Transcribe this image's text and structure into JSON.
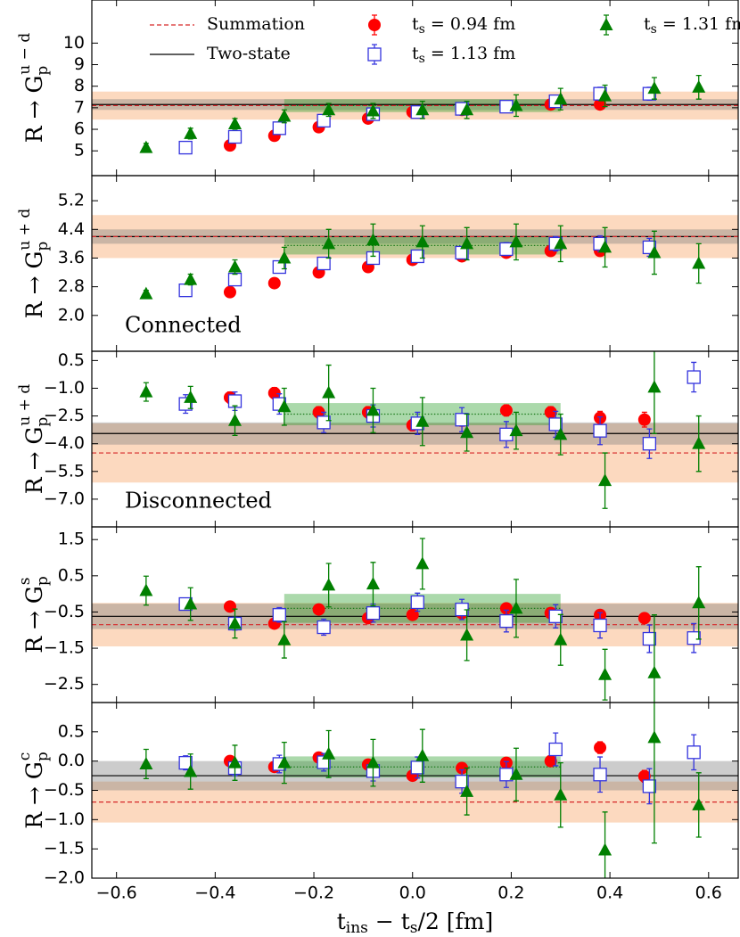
{
  "chart_data": [
    {
      "type": "errorbar",
      "ylabel": [
        "R → G",
        "p",
        "u − d"
      ],
      "xlim": [
        -0.65,
        0.66
      ],
      "xticks": [
        -0.6,
        -0.4,
        -0.2,
        0,
        0.2,
        0.4,
        0.6
      ],
      "ylim": [
        3.85,
        12.0
      ],
      "yticks": [
        5,
        6,
        7,
        8,
        9,
        10
      ],
      "summation": {
        "name": "Summation",
        "value": 7.1,
        "error": 0.65,
        "color": "#d62728"
      },
      "two_state": {
        "name": "Two-state",
        "value": 7.15,
        "error": 0.25,
        "color": "#000000"
      },
      "plateau": {
        "value": 7.1,
        "error": 0.3,
        "xrange": [
          -0.26,
          0.3
        ]
      },
      "series": [
        {
          "name": "ts = 0.94 fm",
          "color": "#ff0000",
          "marker": "circle",
          "x": [
            -0.37,
            -0.28,
            -0.19,
            -0.09,
            0.0,
            0.1,
            0.19,
            0.28,
            0.38,
            0.47
          ],
          "values": [
            5.25,
            5.7,
            6.1,
            6.5,
            6.8,
            6.9,
            7.05,
            7.15,
            7.15,
            null
          ],
          "errors": [
            0.1,
            0.1,
            0.1,
            0.1,
            0.1,
            0.1,
            0.1,
            0.1,
            0.12,
            null
          ]
        },
        {
          "name": "ts = 1.13 fm",
          "color": "#3333dd",
          "marker": "square",
          "x": [
            -0.46,
            -0.36,
            -0.27,
            -0.18,
            -0.08,
            0.01,
            0.1,
            0.19,
            0.29,
            0.38,
            0.48,
            0.57
          ],
          "values": [
            5.15,
            5.65,
            6.05,
            6.4,
            6.7,
            6.8,
            6.95,
            7.05,
            7.3,
            7.65,
            7.65,
            null
          ],
          "errors": [
            0.12,
            0.15,
            0.15,
            0.2,
            0.2,
            0.2,
            0.22,
            0.25,
            0.28,
            0.3,
            0.3,
            null
          ]
        },
        {
          "name": "ts = 1.31 fm",
          "color": "#007f00",
          "marker": "triangle",
          "x": [
            -0.54,
            -0.45,
            -0.36,
            -0.26,
            -0.17,
            -0.08,
            0.02,
            0.11,
            0.21,
            0.3,
            0.39,
            0.49,
            0.58
          ],
          "values": [
            5.15,
            5.8,
            6.25,
            6.6,
            6.9,
            6.85,
            6.9,
            6.9,
            7.1,
            7.4,
            7.55,
            7.9,
            7.95
          ],
          "errors": [
            0.2,
            0.25,
            0.25,
            0.3,
            0.3,
            0.35,
            0.4,
            0.4,
            0.5,
            0.5,
            0.5,
            0.5,
            0.55
          ]
        }
      ]
    },
    {
      "type": "errorbar",
      "ylabel": [
        "R → G",
        "p",
        "u + d"
      ],
      "xlim": [
        -0.65,
        0.66
      ],
      "xticks": [
        -0.6,
        -0.4,
        -0.2,
        0,
        0.2,
        0.4,
        0.6
      ],
      "ylim": [
        1.0,
        5.9
      ],
      "yticks": [
        {
          "value": 2,
          "label": "2.0"
        },
        2.8,
        3.6,
        4.4,
        5.2
      ],
      "annotation": "Connected",
      "summation": {
        "value": 4.2,
        "error": 0.6,
        "color": "#d62728"
      },
      "two_state": {
        "value": 4.2,
        "error": 0.2,
        "color": "#000000"
      },
      "plateau": {
        "value": 3.95,
        "error": 0.25,
        "xrange": [
          -0.26,
          0.3
        ]
      },
      "series": [
        {
          "color": "#ff0000",
          "marker": "circle",
          "x": [
            -0.37,
            -0.28,
            -0.19,
            -0.09,
            0.0,
            0.1,
            0.19,
            0.28,
            0.38,
            0.47
          ],
          "values": [
            2.65,
            2.9,
            3.2,
            3.35,
            3.55,
            3.65,
            3.75,
            3.8,
            3.8,
            null
          ],
          "errors": [
            0.05,
            0.05,
            0.06,
            0.06,
            0.07,
            0.07,
            0.08,
            0.08,
            0.1,
            null
          ]
        },
        {
          "color": "#3333dd",
          "marker": "square",
          "x": [
            -0.46,
            -0.36,
            -0.27,
            -0.18,
            -0.08,
            0.01,
            0.1,
            0.19,
            0.29,
            0.38,
            0.48,
            0.57
          ],
          "values": [
            2.7,
            3.0,
            3.35,
            3.45,
            3.6,
            3.65,
            3.75,
            3.85,
            4.0,
            4.0,
            3.9,
            null
          ],
          "errors": [
            0.08,
            0.1,
            0.12,
            0.12,
            0.14,
            0.15,
            0.16,
            0.18,
            0.2,
            0.22,
            0.25,
            null
          ]
        },
        {
          "color": "#007f00",
          "marker": "triangle",
          "x": [
            -0.54,
            -0.45,
            -0.36,
            -0.26,
            -0.17,
            -0.08,
            0.02,
            0.11,
            0.21,
            0.3,
            0.39,
            0.49,
            0.58
          ],
          "values": [
            2.6,
            3.0,
            3.35,
            3.6,
            4.0,
            4.1,
            4.05,
            4.0,
            4.05,
            4.0,
            3.9,
            3.75,
            3.45
          ],
          "errors": [
            0.1,
            0.15,
            0.2,
            0.3,
            0.4,
            0.45,
            0.45,
            0.45,
            0.5,
            0.5,
            0.55,
            0.6,
            0.55
          ]
        }
      ]
    },
    {
      "type": "errorbar",
      "ylabel": [
        "R → G",
        "p",
        "u + d"
      ],
      "xlim": [
        -0.65,
        0.66
      ],
      "xticks": [
        -0.6,
        -0.4,
        -0.2,
        0,
        0.2,
        0.4,
        0.6
      ],
      "ylim": [
        -8.5,
        1.0
      ],
      "yticks": [
        0.5,
        {
          "value": -1,
          "label": "−1.0"
        },
        {
          "value": -2.5,
          "label": "−2.5"
        },
        {
          "value": -4,
          "label": "−4.0"
        },
        {
          "value": -5.5,
          "label": "−5.5"
        },
        {
          "value": -7,
          "label": "−7.0"
        }
      ],
      "annotation": "Disconnected",
      "summation": {
        "value": -4.5,
        "error": 1.6,
        "color": "#d62728"
      },
      "two_state": {
        "value": -3.45,
        "error": 0.6,
        "color": "#000000"
      },
      "plateau": {
        "value": -2.4,
        "error": 0.6,
        "xrange": [
          -0.26,
          0.3
        ]
      },
      "series": [
        {
          "color": "#ff0000",
          "marker": "circle",
          "x": [
            -0.37,
            -0.28,
            -0.19,
            -0.09,
            0.0,
            0.1,
            0.19,
            0.28,
            0.38,
            0.47
          ],
          "values": [
            -1.5,
            -1.26,
            -2.3,
            -2.3,
            -3.0,
            -2.75,
            -2.2,
            -2.3,
            -2.6,
            -2.7
          ],
          "errors": [
            0.3,
            0.3,
            0.3,
            0.3,
            0.3,
            0.3,
            0.3,
            0.3,
            0.35,
            0.4
          ]
        },
        {
          "color": "#3333dd",
          "marker": "square",
          "x": [
            -0.46,
            -0.36,
            -0.27,
            -0.18,
            -0.08,
            0.01,
            0.1,
            0.19,
            0.29,
            0.38,
            0.48,
            0.57
          ],
          "values": [
            -1.85,
            -1.7,
            -1.85,
            -2.85,
            -2.5,
            -2.9,
            -2.7,
            -3.5,
            -2.95,
            -3.3,
            -4.0,
            -0.4
          ],
          "errors": [
            0.5,
            0.5,
            0.55,
            0.55,
            0.6,
            0.6,
            0.65,
            0.7,
            0.7,
            0.75,
            0.8,
            0.8
          ]
        },
        {
          "color": "#007f00",
          "marker": "triangle",
          "x": [
            -0.54,
            -0.45,
            -0.36,
            -0.26,
            -0.17,
            -0.08,
            0.02,
            0.11,
            0.21,
            0.3,
            0.39,
            0.49,
            0.58
          ],
          "values": [
            -1.2,
            -1.5,
            -2.75,
            -2.0,
            -1.25,
            -2.2,
            -2.8,
            -3.4,
            -3.3,
            -3.5,
            -6.0,
            -0.95,
            -4.0
          ],
          "errors": [
            0.5,
            0.6,
            0.8,
            1.0,
            1.5,
            1.2,
            1.3,
            1.0,
            1.0,
            1.1,
            1.5,
            2.5,
            1.5
          ]
        }
      ]
    },
    {
      "type": "errorbar",
      "ylabel": [
        "R → G",
        "p",
        "s"
      ],
      "xlim": [
        -0.65,
        0.66
      ],
      "xticks": [
        -0.6,
        -0.4,
        -0.2,
        0,
        0.2,
        0.4,
        0.6
      ],
      "ylim": [
        -3.0,
        1.85
      ],
      "yticks": [
        1.5,
        0.5,
        {
          "value": -0.5,
          "label": "−0.5"
        },
        {
          "value": -1.5,
          "label": "−1.5"
        },
        {
          "value": -2.5,
          "label": "−2.5"
        }
      ],
      "summation": {
        "value": -0.85,
        "error": 0.6,
        "color": "#d62728"
      },
      "two_state": {
        "value": -0.62,
        "error": 0.35,
        "color": "#000000"
      },
      "plateau": {
        "value": -0.4,
        "error": 0.4,
        "xrange": [
          -0.26,
          0.3
        ]
      },
      "series": [
        {
          "color": "#ff0000",
          "marker": "circle",
          "x": [
            -0.37,
            -0.28,
            -0.19,
            -0.09,
            0.0,
            0.1,
            0.19,
            0.28,
            0.38,
            0.47
          ],
          "values": [
            -0.35,
            -0.82,
            -0.43,
            -0.67,
            -0.58,
            -0.53,
            -0.4,
            -0.53,
            -0.58,
            -0.67
          ],
          "errors": [
            0.1,
            0.1,
            0.1,
            0.1,
            0.1,
            0.1,
            0.1,
            0.1,
            0.12,
            0.14
          ]
        },
        {
          "color": "#3333dd",
          "marker": "square",
          "x": [
            -0.46,
            -0.36,
            -0.27,
            -0.18,
            -0.08,
            0.01,
            0.1,
            0.19,
            0.29,
            0.38,
            0.48,
            0.57
          ],
          "values": [
            -0.28,
            -0.82,
            -0.58,
            -0.92,
            -0.53,
            -0.23,
            -0.43,
            -0.75,
            -0.62,
            -0.87,
            -1.24,
            -1.22
          ],
          "errors": [
            0.15,
            0.18,
            0.2,
            0.22,
            0.25,
            0.25,
            0.28,
            0.3,
            0.32,
            0.35,
            0.38,
            0.4
          ]
        },
        {
          "color": "#007f00",
          "marker": "triangle",
          "x": [
            -0.54,
            -0.45,
            -0.36,
            -0.26,
            -0.17,
            -0.08,
            0.02,
            0.11,
            0.21,
            0.3,
            0.39,
            0.49,
            0.58
          ],
          "values": [
            0.09,
            -0.28,
            -0.82,
            -1.27,
            0.24,
            0.27,
            0.83,
            -1.14,
            -0.4,
            -1.27,
            -2.23,
            -2.18,
            -0.25
          ],
          "errors": [
            0.4,
            0.45,
            0.4,
            0.5,
            0.6,
            0.6,
            0.7,
            0.7,
            0.8,
            0.7,
            0.7,
            1.6,
            1.0
          ]
        }
      ]
    },
    {
      "type": "errorbar",
      "ylabel": [
        "R → G",
        "p",
        "c"
      ],
      "xlim": [
        -0.65,
        0.66
      ],
      "xticks": [
        {
          "value": -0.6,
          "label": "−0.6"
        },
        {
          "value": -0.4,
          "label": "−0.4"
        },
        {
          "value": -0.2,
          "label": "−0.2"
        },
        {
          "value": 0,
          "label": "0.0"
        },
        0.2,
        0.4,
        0.6
      ],
      "xlabel": [
        "t",
        "ins",
        " − t",
        "s",
        "/2 [fm]"
      ],
      "ylim": [
        -2.0,
        1.0
      ],
      "yticks": [
        0.5,
        {
          "value": 0,
          "label": "0.0"
        },
        {
          "value": -0.5,
          "label": "−0.5"
        },
        {
          "value": -1,
          "label": "−1.0"
        },
        {
          "value": -1.5,
          "label": "−1.5"
        },
        {
          "value": -2,
          "label": "−2.0"
        }
      ],
      "summation": {
        "value": -0.7,
        "error": 0.35,
        "color": "#d62728"
      },
      "two_state": {
        "value": -0.25,
        "error": 0.25,
        "color": "#000000"
      },
      "plateau": {
        "value": -0.1,
        "error": 0.18,
        "xrange": [
          -0.26,
          0.3
        ]
      },
      "series": [
        {
          "color": "#ff0000",
          "marker": "circle",
          "x": [
            -0.37,
            -0.28,
            -0.19,
            -0.09,
            0.0,
            0.1,
            0.19,
            0.28,
            0.38,
            0.47
          ],
          "values": [
            0.0,
            -0.1,
            0.06,
            -0.06,
            -0.25,
            -0.12,
            -0.03,
            0.0,
            0.23,
            -0.26
          ],
          "errors": [
            0.06,
            0.06,
            0.07,
            0.07,
            0.08,
            0.08,
            0.08,
            0.09,
            0.1,
            0.1
          ]
        },
        {
          "color": "#3333dd",
          "marker": "square",
          "x": [
            -0.46,
            -0.36,
            -0.27,
            -0.18,
            -0.08,
            0.01,
            0.1,
            0.19,
            0.29,
            0.38,
            0.48,
            0.57
          ],
          "values": [
            -0.03,
            -0.12,
            -0.05,
            -0.02,
            -0.17,
            -0.11,
            -0.35,
            -0.23,
            0.2,
            -0.23,
            -0.43,
            0.15
          ],
          "errors": [
            0.12,
            0.13,
            0.15,
            0.15,
            0.17,
            0.18,
            0.2,
            0.22,
            0.28,
            0.3,
            0.3,
            0.3
          ]
        },
        {
          "color": "#007f00",
          "marker": "triangle",
          "x": [
            -0.54,
            -0.45,
            -0.36,
            -0.26,
            -0.17,
            -0.08,
            0.02,
            0.11,
            0.21,
            0.3,
            0.39,
            0.49,
            0.58
          ],
          "values": [
            -0.05,
            -0.18,
            -0.03,
            -0.03,
            0.12,
            -0.03,
            0.09,
            -0.52,
            -0.23,
            -0.58,
            -1.52,
            0.4,
            -0.75
          ],
          "errors": [
            0.25,
            0.3,
            0.3,
            0.35,
            0.4,
            0.4,
            0.45,
            0.4,
            0.45,
            0.55,
            0.65,
            1.8,
            0.55
          ]
        }
      ]
    }
  ]
}
